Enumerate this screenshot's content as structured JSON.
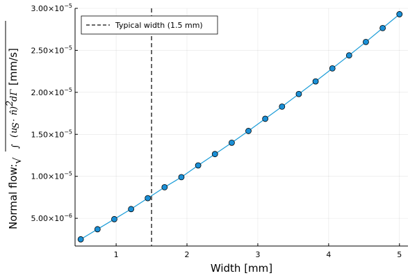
{
  "chart_data": {
    "type": "line",
    "title": "",
    "xlabel": "Width [mm]",
    "ylabel": {
      "prefix": "Normal flow:",
      "sqrt_symbol": "√",
      "integral_symbol": "∫",
      "integrand_open": "(",
      "u_symbol": "u",
      "u_subscript": "S",
      "dot_symbol": "·",
      "n_symbol": "n̂",
      "integrand_close": ")",
      "power": "2",
      "differential": "dΓ",
      "units": "[mm/s]"
    },
    "xlim": [
      0.42,
      5.12
    ],
    "ylim": [
      1.7e-06,
      3e-05
    ],
    "grid": true,
    "x_ticks": [
      1,
      2,
      3,
      4,
      5
    ],
    "x_tick_labels": [
      "1",
      "2",
      "3",
      "4",
      "5"
    ],
    "y_ticks": [
      5e-06,
      1e-05,
      1.5e-05,
      2e-05,
      2.5e-05,
      3e-05
    ],
    "y_tick_labels": [
      {
        "mantissa": "5.00×10",
        "exp": "−6"
      },
      {
        "mantissa": "1.00×10",
        "exp": "−5"
      },
      {
        "mantissa": "1.50×10",
        "exp": "−5"
      },
      {
        "mantissa": "2.00×10",
        "exp": "−5"
      },
      {
        "mantissa": "2.50×10",
        "exp": "−5"
      },
      {
        "mantissa": "3.00×10",
        "exp": "−5"
      }
    ],
    "series": [
      {
        "color": "#1a9cd8",
        "marker_fill": "#1a8fd6",
        "x": [
          0.5,
          0.737,
          0.974,
          1.211,
          1.447,
          1.684,
          1.921,
          2.158,
          2.395,
          2.632,
          2.868,
          3.105,
          3.342,
          3.579,
          3.816,
          4.053,
          4.289,
          4.526,
          4.763,
          5.0
        ],
        "y": [
          2.5e-06,
          3.7e-06,
          4.9e-06,
          6.1e-06,
          7.4e-06,
          8.7e-06,
          9.9e-06,
          1.13e-05,
          1.265e-05,
          1.4e-05,
          1.54e-05,
          1.685e-05,
          1.83e-05,
          1.98e-05,
          2.13e-05,
          2.285e-05,
          2.44e-05,
          2.6e-05,
          2.765e-05,
          2.93e-05
        ]
      }
    ],
    "vline": {
      "x": 1.5,
      "label": "Typical width (1.5 mm)",
      "color": "#333333",
      "style": "dashed"
    },
    "legend_position": "top-left"
  }
}
